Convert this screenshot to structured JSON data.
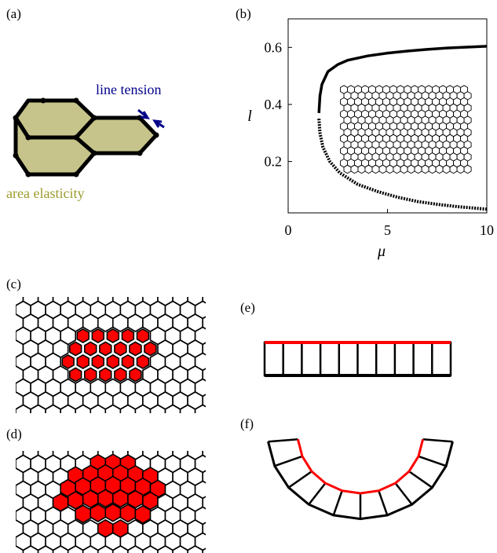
{
  "panels": {
    "a": "(a)",
    "b": "(b)",
    "c": "(c)",
    "d": "(d)",
    "e": "(e)",
    "f": "(f)"
  },
  "annotations": {
    "line_tension": "line tension",
    "area_elasticity": "area elasticity"
  },
  "colors": {
    "cell_fill": "#c6c48a",
    "line_tension": "#00008b",
    "area_text": "#9b9b2d",
    "highlight": "#ff0000"
  },
  "chart_data": {
    "type": "line",
    "xlabel": "μ",
    "ylabel": "l",
    "xlim": [
      0,
      10
    ],
    "ylim": [
      0.02,
      0.7
    ],
    "x_ticks": [
      "0",
      "5",
      "10"
    ],
    "y_ticks": [
      "0.2",
      "0.4",
      "0.6"
    ],
    "series": [
      {
        "style": "solid",
        "points": [
          [
            1.55,
            0.37
          ],
          [
            1.6,
            0.43
          ],
          [
            1.7,
            0.47
          ],
          [
            2.0,
            0.515
          ],
          [
            2.5,
            0.54
          ],
          [
            3,
            0.555
          ],
          [
            4,
            0.57
          ],
          [
            5,
            0.58
          ],
          [
            6,
            0.587
          ],
          [
            7,
            0.593
          ],
          [
            8,
            0.598
          ],
          [
            9,
            0.601
          ],
          [
            10,
            0.604
          ]
        ]
      },
      {
        "style": "dotted",
        "points": [
          [
            1.55,
            0.35
          ],
          [
            1.6,
            0.3
          ],
          [
            1.75,
            0.25
          ],
          [
            2.1,
            0.2
          ],
          [
            2.6,
            0.16
          ],
          [
            3.5,
            0.12
          ],
          [
            4.5,
            0.095
          ],
          [
            5.5,
            0.075
          ],
          [
            6.5,
            0.06
          ],
          [
            7.5,
            0.05
          ],
          [
            8.5,
            0.042
          ],
          [
            10,
            0.033
          ]
        ]
      }
    ]
  }
}
